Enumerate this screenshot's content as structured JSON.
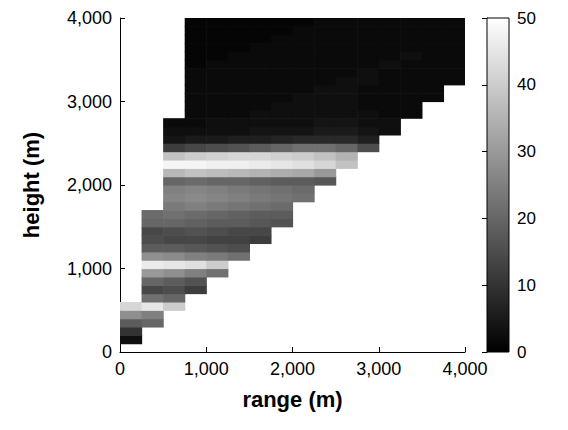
{
  "chart_data": {
    "type": "heatmap",
    "x_label": "range (m)",
    "y_label": "height (m)",
    "x": [
      125,
      375,
      625,
      875,
      1125,
      1375,
      1625,
      1875,
      2125,
      2375,
      2625,
      2875,
      3125,
      3375,
      3625,
      3875
    ],
    "y": [
      50,
      150,
      250,
      350,
      450,
      550,
      650,
      750,
      850,
      950,
      1050,
      1150,
      1250,
      1350,
      1450,
      1550,
      1650,
      1750,
      1850,
      1950,
      2050,
      2150,
      2250,
      2350,
      2450,
      2550,
      2650,
      2750,
      2850,
      2950,
      3050,
      3150,
      3250,
      3350,
      3450,
      3550,
      3650,
      3750,
      3850,
      3950
    ],
    "values": [
      [
        null,
        null,
        null,
        null,
        null,
        null,
        null,
        null,
        null,
        null,
        null,
        null,
        null,
        null,
        null,
        null
      ],
      [
        3,
        null,
        null,
        null,
        null,
        null,
        null,
        null,
        null,
        null,
        null,
        null,
        null,
        null,
        null,
        null
      ],
      [
        10,
        null,
        null,
        null,
        null,
        null,
        null,
        null,
        null,
        null,
        null,
        null,
        null,
        null,
        null,
        null
      ],
      [
        18,
        20,
        null,
        null,
        null,
        null,
        null,
        null,
        null,
        null,
        null,
        null,
        null,
        null,
        null,
        null
      ],
      [
        28,
        25,
        null,
        null,
        null,
        null,
        null,
        null,
        null,
        null,
        null,
        null,
        null,
        null,
        null,
        null
      ],
      [
        42,
        45,
        40,
        null,
        null,
        null,
        null,
        null,
        null,
        null,
        null,
        null,
        null,
        null,
        null,
        null
      ],
      [
        null,
        22,
        20,
        null,
        null,
        null,
        null,
        null,
        null,
        null,
        null,
        null,
        null,
        null,
        null,
        null
      ],
      [
        null,
        14,
        15,
        12,
        null,
        null,
        null,
        null,
        null,
        null,
        null,
        null,
        null,
        null,
        null,
        null
      ],
      [
        null,
        20,
        18,
        16,
        null,
        null,
        null,
        null,
        null,
        null,
        null,
        null,
        null,
        null,
        null,
        null
      ],
      [
        null,
        30,
        28,
        25,
        22,
        null,
        null,
        null,
        null,
        null,
        null,
        null,
        null,
        null,
        null,
        null
      ],
      [
        null,
        46,
        45,
        44,
        40,
        null,
        null,
        null,
        null,
        null,
        null,
        null,
        null,
        null,
        null,
        null
      ],
      [
        null,
        28,
        27,
        25,
        24,
        22,
        null,
        null,
        null,
        null,
        null,
        null,
        null,
        null,
        null,
        null
      ],
      [
        null,
        18,
        18,
        17,
        16,
        15,
        null,
        null,
        null,
        null,
        null,
        null,
        null,
        null,
        null,
        null
      ],
      [
        null,
        15,
        14,
        14,
        13,
        13,
        12,
        null,
        null,
        null,
        null,
        null,
        null,
        null,
        null,
        null
      ],
      [
        null,
        14,
        15,
        16,
        15,
        14,
        14,
        null,
        null,
        null,
        null,
        null,
        null,
        null,
        null,
        null
      ],
      [
        null,
        20,
        20,
        19,
        18,
        18,
        17,
        16,
        null,
        null,
        null,
        null,
        null,
        null,
        null,
        null
      ],
      [
        null,
        21,
        22,
        21,
        20,
        19,
        18,
        18,
        null,
        null,
        null,
        null,
        null,
        null,
        null,
        null
      ],
      [
        null,
        null,
        24,
        25,
        24,
        23,
        22,
        21,
        null,
        null,
        null,
        null,
        null,
        null,
        null,
        null
      ],
      [
        null,
        null,
        26,
        27,
        26,
        25,
        24,
        23,
        22,
        null,
        null,
        null,
        null,
        null,
        null,
        null
      ],
      [
        null,
        null,
        25,
        26,
        25,
        24,
        23,
        22,
        21,
        null,
        null,
        null,
        null,
        null,
        null,
        null
      ],
      [
        null,
        null,
        20,
        21,
        20,
        20,
        19,
        18,
        18,
        17,
        null,
        null,
        null,
        null,
        null,
        null
      ],
      [
        null,
        null,
        36,
        38,
        37,
        36,
        35,
        34,
        33,
        30,
        null,
        null,
        null,
        null,
        null,
        null
      ],
      [
        null,
        null,
        48,
        48,
        47,
        47,
        46,
        45,
        44,
        42,
        38,
        null,
        null,
        null,
        null,
        null
      ],
      [
        null,
        null,
        38,
        40,
        41,
        42,
        42,
        41,
        40,
        38,
        35,
        null,
        null,
        null,
        null,
        null
      ],
      [
        null,
        null,
        12,
        14,
        15,
        16,
        18,
        20,
        22,
        22,
        20,
        15,
        null,
        null,
        null,
        null
      ],
      [
        null,
        null,
        4,
        5,
        5,
        6,
        6,
        7,
        8,
        8,
        8,
        6,
        null,
        null,
        null,
        null
      ],
      [
        null,
        null,
        3,
        3,
        3,
        3,
        4,
        4,
        4,
        5,
        5,
        4,
        3,
        null,
        null,
        null
      ],
      [
        null,
        null,
        2,
        2,
        3,
        3,
        3,
        3,
        3,
        4,
        4,
        3,
        3,
        null,
        null,
        null
      ],
      [
        null,
        null,
        null,
        2,
        2,
        2,
        3,
        3,
        3,
        3,
        3,
        3,
        2,
        2,
        null,
        null
      ],
      [
        null,
        null,
        null,
        2,
        2,
        2,
        2,
        3,
        3,
        3,
        3,
        2,
        2,
        2,
        null,
        null
      ],
      [
        null,
        null,
        null,
        2,
        2,
        2,
        2,
        2,
        3,
        3,
        3,
        2,
        2,
        2,
        2,
        null
      ],
      [
        null,
        null,
        null,
        2,
        2,
        2,
        2,
        2,
        2,
        3,
        3,
        2,
        2,
        2,
        2,
        null
      ],
      [
        null,
        null,
        null,
        2,
        2,
        2,
        2,
        2,
        2,
        2,
        3,
        3,
        2,
        2,
        2,
        2
      ],
      [
        null,
        null,
        null,
        2,
        2,
        2,
        2,
        2,
        2,
        2,
        2,
        3,
        2,
        2,
        2,
        2
      ],
      [
        null,
        null,
        null,
        1,
        2,
        2,
        2,
        2,
        2,
        2,
        2,
        2,
        3,
        2,
        2,
        2
      ],
      [
        null,
        null,
        null,
        1,
        1,
        2,
        2,
        2,
        2,
        2,
        2,
        2,
        2,
        3,
        2,
        2
      ],
      [
        null,
        null,
        null,
        1,
        1,
        1,
        2,
        2,
        2,
        2,
        2,
        2,
        2,
        2,
        2,
        2
      ],
      [
        null,
        null,
        null,
        1,
        1,
        1,
        1,
        2,
        2,
        2,
        2,
        2,
        2,
        2,
        2,
        2
      ],
      [
        null,
        null,
        null,
        1,
        1,
        1,
        1,
        1,
        2,
        2,
        2,
        2,
        2,
        2,
        2,
        2
      ],
      [
        null,
        null,
        null,
        1,
        1,
        1,
        1,
        1,
        1,
        2,
        2,
        2,
        2,
        2,
        2,
        2
      ]
    ],
    "xlim": [
      0,
      4000
    ],
    "ylim": [
      0,
      4000
    ],
    "xticks": [
      0,
      1000,
      2000,
      3000,
      4000
    ],
    "yticks": [
      0,
      1000,
      2000,
      3000,
      4000
    ],
    "colorbar": {
      "range": [
        0,
        50
      ],
      "ticks": [
        0,
        10,
        20,
        30,
        40,
        50
      ],
      "colors": [
        "#000000",
        "#ffffff"
      ]
    }
  }
}
